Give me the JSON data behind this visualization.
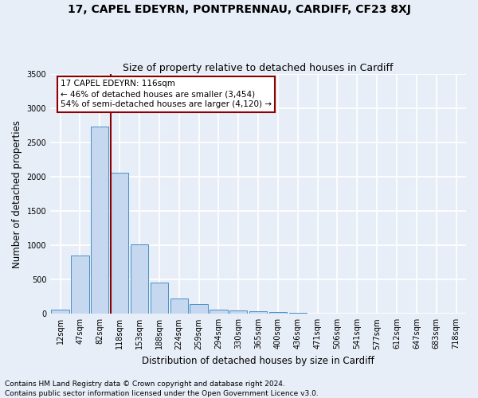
{
  "title": "17, CAPEL EDEYRN, PONTPRENNAU, CARDIFF, CF23 8XJ",
  "subtitle": "Size of property relative to detached houses in Cardiff",
  "xlabel": "Distribution of detached houses by size in Cardiff",
  "ylabel": "Number of detached properties",
  "categories": [
    "12sqm",
    "47sqm",
    "82sqm",
    "118sqm",
    "153sqm",
    "188sqm",
    "224sqm",
    "259sqm",
    "294sqm",
    "330sqm",
    "365sqm",
    "400sqm",
    "436sqm",
    "471sqm",
    "506sqm",
    "541sqm",
    "577sqm",
    "612sqm",
    "647sqm",
    "683sqm",
    "718sqm"
  ],
  "values": [
    60,
    855,
    2730,
    2060,
    1010,
    460,
    230,
    145,
    62,
    48,
    35,
    22,
    10,
    5,
    3,
    2,
    1,
    1,
    1,
    1,
    0
  ],
  "bar_color": "#c5d8f0",
  "bar_edge_color": "#4a90c4",
  "vline_color": "#8b0000",
  "annotation_text": "17 CAPEL EDEYRN: 116sqm\n← 46% of detached houses are smaller (3,454)\n54% of semi-detached houses are larger (4,120) →",
  "annotation_box_color": "#8b0000",
  "ylim": [
    0,
    3500
  ],
  "yticks": [
    0,
    500,
    1000,
    1500,
    2000,
    2500,
    3000,
    3500
  ],
  "footer1": "Contains HM Land Registry data © Crown copyright and database right 2024.",
  "footer2": "Contains public sector information licensed under the Open Government Licence v3.0.",
  "background_color": "#e8eef8",
  "grid_color": "#ffffff",
  "title_fontsize": 10,
  "subtitle_fontsize": 9,
  "axis_label_fontsize": 8.5,
  "tick_fontsize": 7,
  "footer_fontsize": 6.5,
  "annotation_fontsize": 7.5
}
